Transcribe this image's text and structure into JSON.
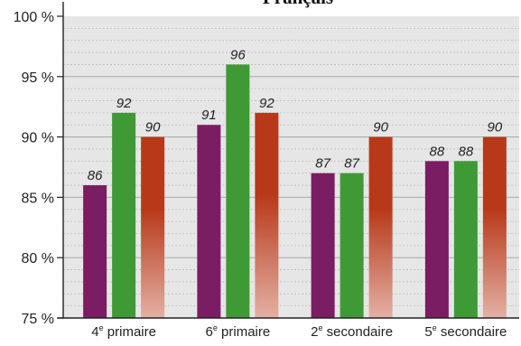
{
  "chart_data": {
    "type": "bar",
    "title": "Français",
    "categories": [
      "4e primaire",
      "6e primaire",
      "2e secondaire",
      "5e secondaire"
    ],
    "category_parts": [
      {
        "num": "4",
        "sup": "e",
        "rest": " primaire"
      },
      {
        "num": "6",
        "sup": "e",
        "rest": " primaire"
      },
      {
        "num": "2",
        "sup": "e",
        "rest": " secondaire"
      },
      {
        "num": "5",
        "sup": "e",
        "rest": " secondaire"
      }
    ],
    "series": [
      {
        "values": [
          86,
          91,
          87,
          88
        ],
        "color": "#7b1d62"
      },
      {
        "values": [
          92,
          96,
          87,
          88
        ],
        "color": "#3f9a35"
      },
      {
        "values": [
          90,
          92,
          90,
          90
        ],
        "color": "#b8391a",
        "gradient_to": "#e3b0a4"
      }
    ],
    "ylim": [
      75,
      100
    ],
    "yticks": [
      75,
      80,
      85,
      90,
      95,
      100
    ],
    "ytick_labels": [
      "75 %",
      "80 %",
      "85 %",
      "90 %",
      "95 %",
      "100 %"
    ],
    "minor_grid_step": 1,
    "grid": true,
    "background": "#e6e6e6",
    "xlabel": "",
    "ylabel": ""
  }
}
